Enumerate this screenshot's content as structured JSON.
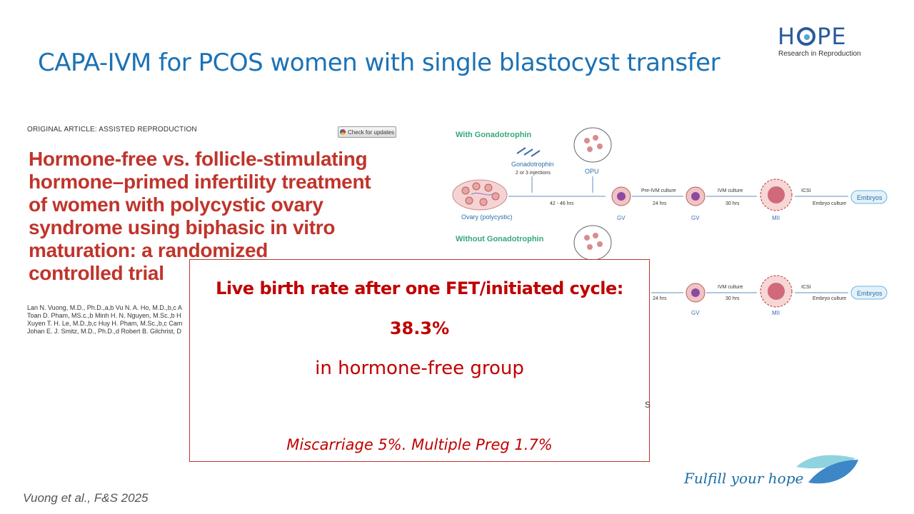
{
  "logo": {
    "wordmark_left": "H",
    "wordmark_right": "PE",
    "subtitle": "Research in Reproduction",
    "icon": "eye-o-icon"
  },
  "slide": {
    "title": "CAPA-IVM for PCOS women with single blastocyst transfer"
  },
  "paper": {
    "category": "ORIGINAL ARTICLE: ASSISTED REPRODUCTION",
    "check_updates": "Check for updates",
    "title_lines": [
      "Hormone-free vs. follicle-stimulating",
      "hormone–primed infertility treatment",
      "of women with polycystic ovary",
      "syndrome using biphasic in vitro",
      "maturation: a randomized",
      "controlled trial"
    ],
    "author_lines": [
      "Lan N. Vuong, M.D., Ph.D.,a,b Vu N. A. Ho, M.D.,b,c A",
      "Toan D. Pham, MS.c.,b Minh H. N. Nguyen, M.Sc.,b H",
      "Xuyen T. H. Le, M.D.,b,c Huy H. Pham, M.Sc.,b,c Cam",
      "Johan E. J. Smitz, M.D., Ph.D.,d Robert B. Gilchrist, D"
    ]
  },
  "diagram": {
    "with_header": "With Gonadotrophin",
    "without_header": "Without Gonadotrophin",
    "gonadotrophin": "Gonadotrophin",
    "injections": "2 or 3 injections",
    "opu": "OPU",
    "ovary": "Ovary (polycystic)",
    "interval": "42 - 46 hrs",
    "pre_ivm": "Pre-IVM culture",
    "pre_ivm_time": "24 hrs",
    "ivm": "IVM culture",
    "ivm_time": "30 hrs",
    "icsi": "ICSI",
    "embryo_culture": "Embryo culture",
    "embryos": "Embryos",
    "gv": "GV",
    "mii": "MII"
  },
  "result": {
    "heading": "Live birth rate after one FET/initiated cycle:",
    "value": "38.3%",
    "group": "in hormone-free group",
    "note": "Miscarriage 5%. Multiple Preg 1.7%"
  },
  "stray_mark": "s",
  "footer": {
    "tagline": "Fulfill your hope",
    "citation": "Vuong et al., F&S 2025"
  },
  "colors": {
    "title_blue": "#1b72b5",
    "result_red": "#c00000",
    "paper_red": "#c0342b",
    "diagram_green": "#35a879"
  }
}
